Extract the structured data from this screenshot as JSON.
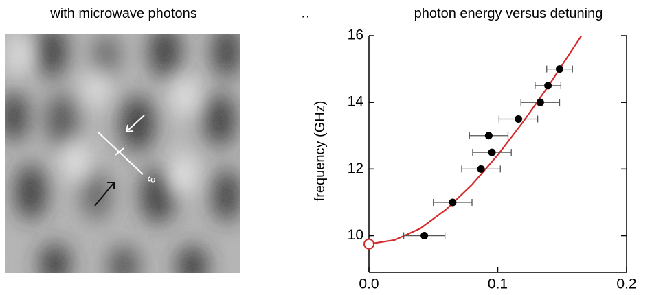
{
  "image": {
    "title": "with microwave photons",
    "label": "ε"
  },
  "chart_data": {
    "type": "scatter",
    "title": "photon energy versus detuning",
    "y_label": "frequency (GHz)",
    "xlim": [
      0,
      0.2
    ],
    "ylim": [
      8.9,
      16
    ],
    "xticks": [
      {
        "value": 0,
        "label": "0.0"
      },
      0.1,
      0.2
    ],
    "yticks": [
      10,
      12,
      14,
      16
    ],
    "points": {
      "color": "#000000",
      "x": [
        0.043,
        0.065,
        0.087,
        0.0955,
        0.093,
        0.116,
        0.133,
        0.139,
        0.148
      ],
      "y": [
        10.0,
        11.0,
        12.0,
        12.5,
        13.0,
        13.5,
        14.0,
        14.5,
        15.0
      ],
      "xerr": [
        0.016,
        0.015,
        0.015,
        0.015,
        0.015,
        0.015,
        0.015,
        0.01,
        0.01
      ]
    },
    "fit": {
      "color": "#d42a2a",
      "x": [
        0,
        0.02,
        0.04,
        0.06,
        0.08,
        0.1,
        0.12,
        0.14,
        0.16,
        0.165
      ],
      "y": [
        9.75,
        9.87,
        10.22,
        10.79,
        11.53,
        12.42,
        13.43,
        14.53,
        15.71,
        16.0
      ]
    }
  }
}
